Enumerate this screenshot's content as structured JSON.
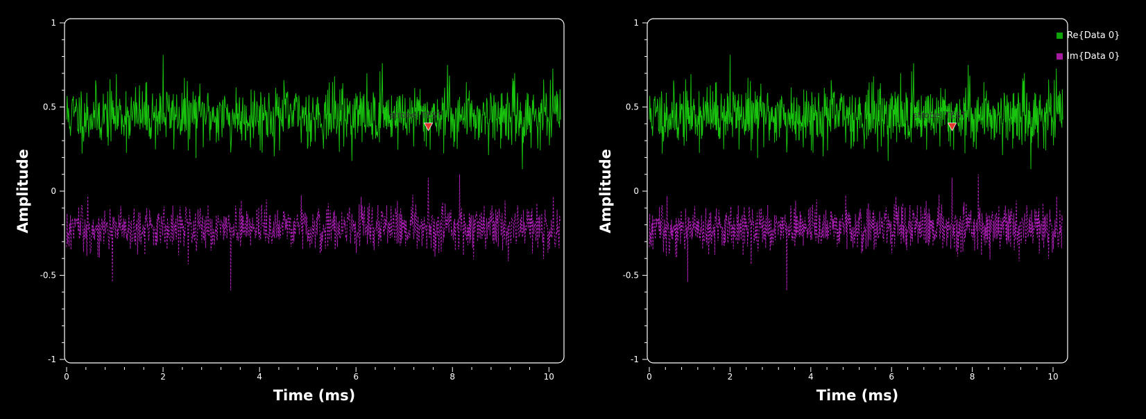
{
  "colors": {
    "real": "#19c40f",
    "imag": "#b01fba",
    "marker": "#e23a2f",
    "frame": "#ffffff",
    "background": "#000000"
  },
  "legend": [
    {
      "label": "Re{Data 0}",
      "color": "#0fa20a"
    },
    {
      "label": "Im{Data 0}",
      "color": "#a51a9f"
    }
  ],
  "chart_data": [
    {
      "type": "line",
      "xlabel": "Time (ms)",
      "ylabel": "Amplitude",
      "xlim": [
        0,
        10.24
      ],
      "ylim": [
        -1,
        1
      ],
      "xticks": [
        "0",
        "2",
        "4",
        "6",
        "8",
        "10"
      ],
      "yticks": [
        "1",
        "0.5",
        "0",
        "-0.5",
        "-1"
      ],
      "grid": false,
      "series": [
        {
          "name": "Re{Data 0}",
          "style": "solid",
          "mean": 0.45,
          "spread": 0.09,
          "x_start": 0,
          "x_end": 10.24,
          "n_points": 1024,
          "peaks": [
            [
              2.0,
              0.81
            ],
            [
              6.55,
              0.76
            ],
            [
              7.9,
              0.75
            ],
            [
              3.4,
              0.23
            ],
            [
              9.45,
              0.13
            ]
          ]
        },
        {
          "name": "Im{Data 0}",
          "style": "dashed",
          "mean": -0.22,
          "spread": 0.07,
          "x_start": 0,
          "x_end": 10.24,
          "n_points": 1024,
          "peaks": [
            [
              3.4,
              -0.59
            ],
            [
              0.95,
              -0.54
            ],
            [
              7.5,
              0.08
            ],
            [
              8.15,
              0.1
            ]
          ]
        }
      ],
      "annotation": {
        "text": "strobe: TEST",
        "x": 7.5,
        "y": 0.38
      }
    },
    {
      "type": "line",
      "xlabel": "Time (ms)",
      "ylabel": "Amplitude",
      "xlim": [
        0,
        10.24
      ],
      "ylim": [
        -1,
        1
      ],
      "xticks": [
        "0",
        "2",
        "4",
        "6",
        "8",
        "10"
      ],
      "yticks": [
        "1",
        "0.5",
        "0",
        "-0.5",
        "-1"
      ],
      "grid": false,
      "series": [
        {
          "name": "Re{Data 0}",
          "style": "solid",
          "mean": 0.45,
          "spread": 0.09,
          "x_start": 0,
          "x_end": 10.24,
          "n_points": 1024,
          "peaks": [
            [
              2.0,
              0.81
            ],
            [
              6.55,
              0.76
            ],
            [
              7.9,
              0.75
            ],
            [
              3.4,
              0.23
            ],
            [
              9.45,
              0.13
            ]
          ]
        },
        {
          "name": "Im{Data 0}",
          "style": "dashed",
          "mean": -0.22,
          "spread": 0.07,
          "x_start": 0,
          "x_end": 10.24,
          "n_points": 1024,
          "peaks": [
            [
              3.4,
              -0.59
            ],
            [
              0.95,
              -0.54
            ],
            [
              7.5,
              0.08
            ],
            [
              8.15,
              0.1
            ]
          ]
        }
      ],
      "annotation": {
        "text": "strobe: TEST",
        "x": 7.5,
        "y": 0.38
      }
    }
  ]
}
